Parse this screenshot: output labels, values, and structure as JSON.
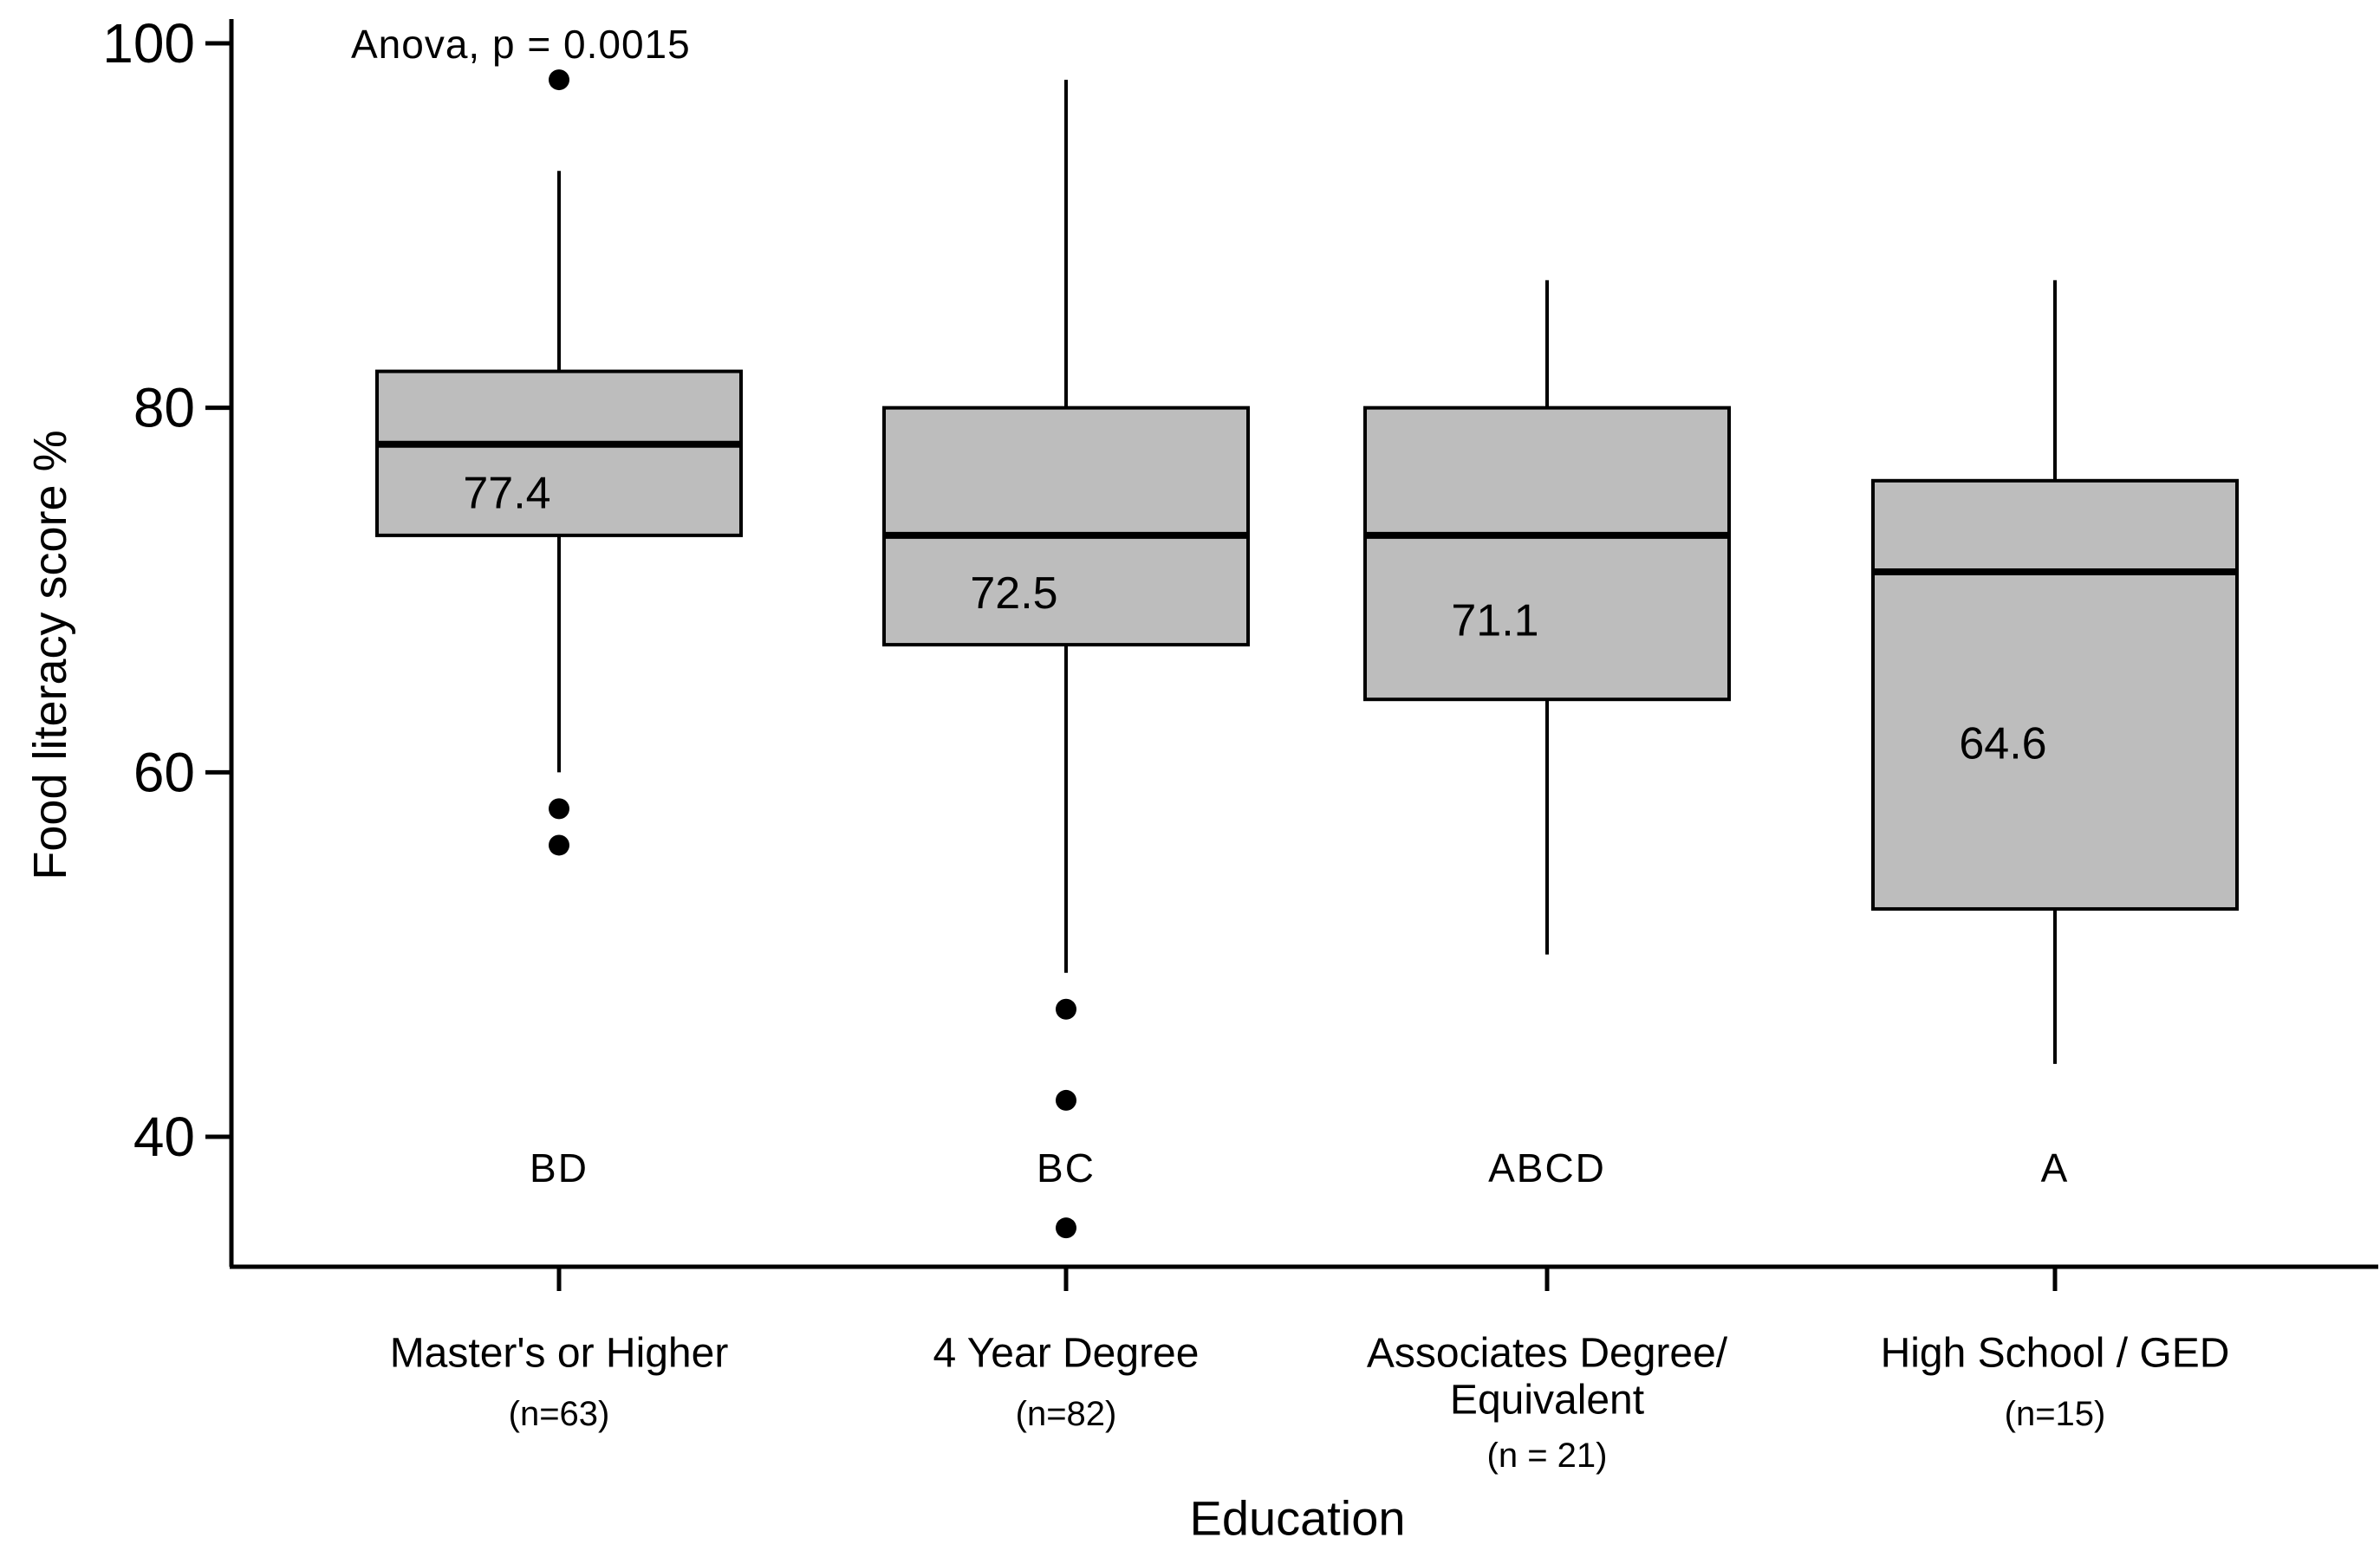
{
  "chart_data": {
    "type": "boxplot",
    "annotation": "Anova, p = 0.0015",
    "xlabel": "Education",
    "ylabel": "Food literacy score %",
    "y_ticks": [
      100,
      80,
      60,
      40
    ],
    "ylim": [
      33,
      101
    ],
    "grid": false,
    "legend": "none",
    "box_fill": "#bdbdbd",
    "line_color": "#000000",
    "groups": [
      {
        "label_lines": [
          "Master's or Higher"
        ],
        "n_label": "(n=63)",
        "significance_letters": "BD",
        "mean_label": "77.4",
        "whisker_low": 60,
        "q1": 73,
        "median": 78,
        "q3": 82,
        "whisker_high": 93,
        "outliers": [
          98,
          58,
          56
        ]
      },
      {
        "label_lines": [
          "4 Year Degree"
        ],
        "n_label": "(n=82)",
        "significance_letters": "BC",
        "mean_label": "72.5",
        "whisker_low": 49,
        "q1": 67,
        "median": 73,
        "q3": 80,
        "whisker_high": 98,
        "outliers": [
          47,
          42,
          35
        ]
      },
      {
        "label_lines": [
          "Associates Degree/",
          "Equivalent"
        ],
        "n_label": "(n = 21)",
        "significance_letters": "ABCD",
        "mean_label": "71.1",
        "whisker_low": 50,
        "q1": 64,
        "median": 73,
        "q3": 80,
        "whisker_high": 87,
        "outliers": []
      },
      {
        "label_lines": [
          "High School / GED"
        ],
        "n_label": "(n=15)",
        "significance_letters": "A",
        "mean_label": "64.6",
        "whisker_low": 44,
        "q1": 52.5,
        "median": 71,
        "q3": 76,
        "whisker_high": 87,
        "outliers": []
      }
    ]
  }
}
